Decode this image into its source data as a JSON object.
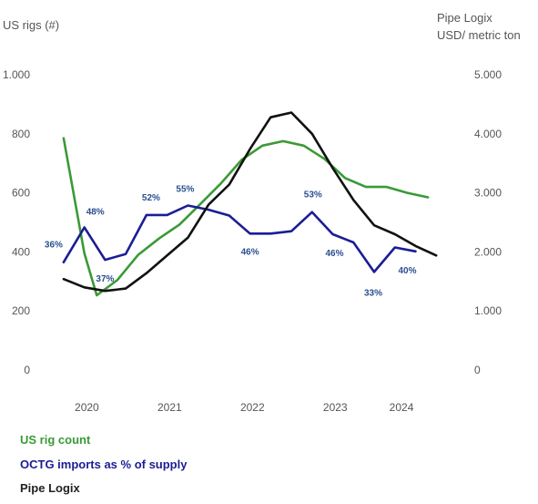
{
  "chart_data": {
    "type": "line",
    "left_axis": {
      "title": "US rigs (#)",
      "ylim": [
        0,
        1000
      ],
      "ticks": [
        0,
        200,
        400,
        600,
        800,
        1000
      ],
      "tick_labels": [
        "0",
        "200",
        "400",
        "600",
        "800",
        "1.000"
      ]
    },
    "right_axis": {
      "title_lines": [
        "Pipe Logix",
        "USD/ metric ton"
      ],
      "ylim": [
        0,
        5000
      ],
      "ticks": [
        0,
        1000,
        2000,
        3000,
        4000,
        5000
      ],
      "tick_labels": [
        "0",
        "1.000",
        "2.000",
        "3.000",
        "4.000",
        "5.000"
      ]
    },
    "x_axis": {
      "xlim": [
        2019.6,
        2024.8
      ],
      "ticks": [
        2020.0,
        2021.0,
        2022.0,
        2023.0,
        2023.8
      ],
      "tick_labels": [
        "2020",
        "2021",
        "2022",
        "2023",
        "2024"
      ]
    },
    "grid": false,
    "legend_position": "bottom-left",
    "series": [
      {
        "name": "US rig count",
        "axis": "left",
        "color": "#3a9a35",
        "x": [
          2019.72,
          2019.97,
          2020.12,
          2020.37,
          2020.62,
          2020.87,
          2021.12,
          2021.37,
          2021.62,
          2021.87,
          2022.12,
          2022.37,
          2022.62,
          2022.87,
          2023.12,
          2023.37,
          2023.62,
          2023.87,
          2024.12
        ],
        "values": [
          785,
          395,
          253,
          305,
          390,
          445,
          493,
          562,
          632,
          712,
          760,
          775,
          760,
          715,
          650,
          620,
          620,
          600,
          585
        ]
      },
      {
        "name": "OCTG imports as % of supply",
        "axis": "left",
        "color": "#1c1c96",
        "x": [
          2019.72,
          2019.97,
          2020.22,
          2020.47,
          2020.72,
          2020.97,
          2021.22,
          2021.47,
          2021.72,
          2021.97,
          2022.22,
          2022.47,
          2022.72,
          2022.97,
          2023.22,
          2023.47,
          2023.72,
          2023.97
        ],
        "values": [
          365,
          483,
          373,
          393,
          525,
          525,
          557,
          543,
          523,
          462,
          462,
          470,
          535,
          460,
          432,
          332,
          415,
          402
        ],
        "labels": [
          "36%",
          "48%",
          "37%",
          "52%",
          "55%",
          "46%",
          "53%",
          "46%",
          "33%",
          "40%"
        ]
      },
      {
        "name": "Pipe Logix",
        "axis": "right",
        "color": "#111111",
        "x": [
          2019.72,
          2019.97,
          2020.22,
          2020.47,
          2020.72,
          2020.97,
          2021.22,
          2021.47,
          2021.72,
          2021.97,
          2022.22,
          2022.47,
          2022.72,
          2022.97,
          2023.22,
          2023.47,
          2023.72,
          2023.97,
          2024.22
        ],
        "values": [
          1540,
          1400,
          1340,
          1380,
          1640,
          1940,
          2240,
          2800,
          3140,
          3740,
          4280,
          4360,
          4000,
          3420,
          2880,
          2450,
          2300,
          2100,
          1940
        ]
      }
    ]
  }
}
